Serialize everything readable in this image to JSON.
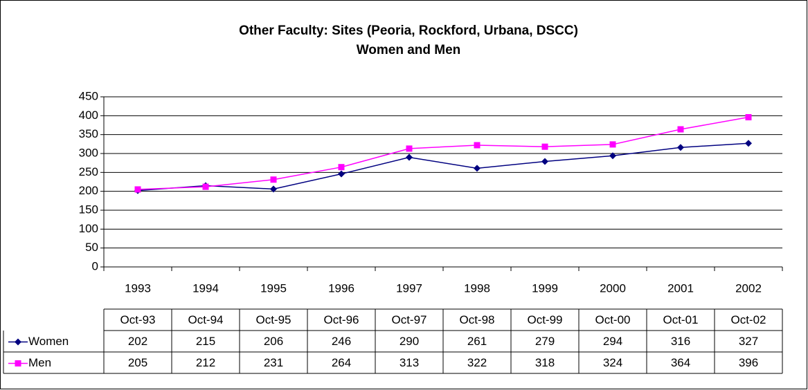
{
  "chart_data": {
    "type": "line",
    "title": "Other Faculty: Sites (Peoria, Rockford, Urbana, DSCC)",
    "subtitle": "Women and Men",
    "categories": [
      "1993",
      "1994",
      "1995",
      "1996",
      "1997",
      "1998",
      "1999",
      "2000",
      "2001",
      "2002"
    ],
    "table_columns": [
      "Oct-93",
      "Oct-94",
      "Oct-95",
      "Oct-96",
      "Oct-97",
      "Oct-98",
      "Oct-99",
      "Oct-00",
      "Oct-01",
      "Oct-02"
    ],
    "series": [
      {
        "name": "Women",
        "color": "#000080",
        "marker": "diamond",
        "values": [
          202,
          215,
          206,
          246,
          290,
          261,
          279,
          294,
          316,
          327
        ]
      },
      {
        "name": "Men",
        "color": "#ff00ff",
        "marker": "square",
        "values": [
          205,
          212,
          231,
          264,
          313,
          322,
          318,
          324,
          364,
          396
        ]
      }
    ],
    "ylim": [
      0,
      450
    ],
    "yticks": [
      0,
      50,
      100,
      150,
      200,
      250,
      300,
      350,
      400,
      450
    ],
    "grid": true
  }
}
